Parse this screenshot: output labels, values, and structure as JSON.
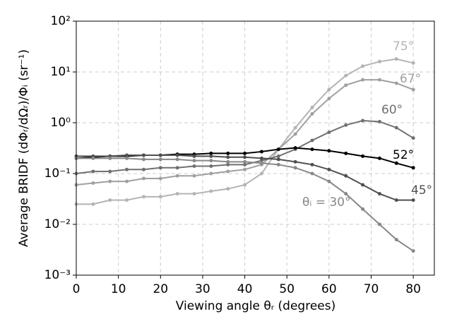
{
  "chart_data": {
    "type": "line",
    "xlabel": "Viewing angle θᵣ (degrees)",
    "ylabel": "Average BRIDF (dΦᵣ/dΩᵣ)/Φᵢ (sr⁻¹)",
    "x": [
      0,
      4,
      8,
      12,
      16,
      20,
      24,
      28,
      32,
      36,
      40,
      44,
      48,
      52,
      56,
      60,
      64,
      68,
      72,
      76,
      80
    ],
    "series": [
      {
        "name": "75°",
        "color": "#b4b4b4",
        "values": [
          0.025,
          0.025,
          0.03,
          0.03,
          0.035,
          0.035,
          0.04,
          0.04,
          0.045,
          0.05,
          0.06,
          0.1,
          0.3,
          0.8,
          2,
          4.5,
          8.5,
          13,
          16,
          18,
          15
        ]
      },
      {
        "name": "67°",
        "color": "#a0a0a0",
        "values": [
          0.06,
          0.065,
          0.07,
          0.07,
          0.08,
          0.08,
          0.09,
          0.09,
          0.1,
          0.11,
          0.12,
          0.15,
          0.3,
          0.6,
          1.5,
          3,
          5.5,
          7,
          7,
          6,
          4.5
        ]
      },
      {
        "name": "60°",
        "color": "#707070",
        "values": [
          0.1,
          0.11,
          0.11,
          0.12,
          0.12,
          0.13,
          0.13,
          0.14,
          0.14,
          0.15,
          0.15,
          0.18,
          0.22,
          0.3,
          0.45,
          0.65,
          0.9,
          1.1,
          1.05,
          0.8,
          0.5
        ]
      },
      {
        "name": "52°",
        "color": "#000000",
        "values": [
          0.2,
          0.21,
          0.22,
          0.22,
          0.23,
          0.23,
          0.24,
          0.24,
          0.25,
          0.25,
          0.25,
          0.27,
          0.3,
          0.32,
          0.3,
          0.28,
          0.25,
          0.22,
          0.2,
          0.16,
          0.13
        ]
      },
      {
        "name": "45°",
        "color": "#505050",
        "values": [
          0.22,
          0.22,
          0.22,
          0.23,
          0.23,
          0.23,
          0.23,
          0.22,
          0.22,
          0.21,
          0.21,
          0.2,
          0.19,
          0.17,
          0.15,
          0.12,
          0.09,
          0.06,
          0.04,
          0.03,
          0.03
        ]
      },
      {
        "name": "θᵢ = 30°",
        "color": "#888888",
        "values": [
          0.2,
          0.2,
          0.2,
          0.2,
          0.19,
          0.19,
          0.19,
          0.18,
          0.18,
          0.17,
          0.17,
          0.16,
          0.15,
          0.13,
          0.1,
          0.07,
          0.04,
          0.02,
          0.01,
          0.005,
          0.003
        ]
      }
    ],
    "xlim": [
      0,
      85
    ],
    "xticks": [
      0,
      10,
      20,
      30,
      40,
      50,
      60,
      70,
      80
    ],
    "ylim": [
      0.001,
      100
    ],
    "log_y": true,
    "yticks": [
      {
        "value": 0.001,
        "label": "10⁻³"
      },
      {
        "value": 0.01,
        "label": "10⁻²"
      },
      {
        "value": 0.1,
        "label": "10⁻¹"
      },
      {
        "value": 1,
        "label": "10⁰"
      },
      {
        "value": 10,
        "label": "10¹"
      },
      {
        "value": 100,
        "label": "10²"
      }
    ],
    "grid": true
  }
}
